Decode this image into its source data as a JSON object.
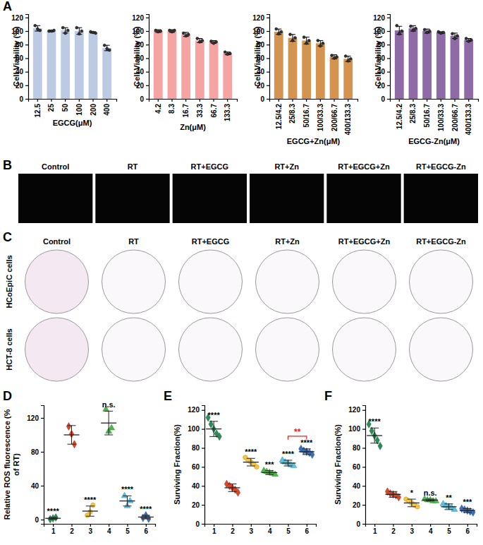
{
  "panel_letters": [
    "A",
    "B",
    "C",
    "D",
    "E",
    "F"
  ],
  "image_panels": {
    "fluorescence": {
      "columns": [
        "Control",
        "RT",
        "RT+EGCG",
        "RT+Zn",
        "RT+EGCG+Zn",
        "RT+EGCG-Zn"
      ]
    },
    "colony": {
      "columns": [
        "Control",
        "RT",
        "RT+EGCG",
        "RT+Zn",
        "RT+EGCG+Zn",
        "RT+EGCG-Zn"
      ],
      "rows": [
        "HCoEpiC cells",
        "HCT-8 cells"
      ]
    }
  },
  "chart_data": [
    {
      "type": "bar",
      "x_label": "EGCG(μM)",
      "y_label": "Cell Viability (%)",
      "categories": [
        "12.5",
        "25",
        "50",
        "100",
        "200",
        "400"
      ],
      "values": [
        104,
        100,
        101,
        100,
        98,
        75
      ],
      "errors": [
        4,
        1,
        4,
        5,
        1,
        4
      ],
      "points": [
        [
          108,
          103,
          101
        ],
        [
          100,
          100,
          101
        ],
        [
          105,
          97,
          101
        ],
        [
          105,
          96,
          100
        ],
        [
          99,
          98,
          97
        ],
        [
          79,
          74,
          72
        ]
      ],
      "color": "#bccbe3",
      "ylim": [
        0,
        125
      ],
      "yticks": [
        0,
        20,
        40,
        60,
        80,
        100,
        120
      ]
    },
    {
      "type": "bar",
      "x_label": "Zn(μM)",
      "y_label": "Cell Viability (%)",
      "categories": [
        "4.2",
        "8.3",
        "16.7",
        "33.3",
        "66.7",
        "133.3"
      ],
      "values": [
        100,
        100,
        95,
        86,
        84,
        67
      ],
      "errors": [
        2,
        2,
        3,
        3,
        2,
        2
      ],
      "points": [
        [
          101,
          99,
          100
        ],
        [
          101,
          99,
          101
        ],
        [
          97,
          93,
          95
        ],
        [
          89,
          84,
          86
        ],
        [
          85,
          82,
          84
        ],
        [
          69,
          66,
          67
        ]
      ],
      "color": "#f5a3a3",
      "ylim": [
        0,
        125
      ],
      "yticks": [
        0,
        20,
        40,
        60,
        80,
        100,
        120
      ]
    },
    {
      "type": "bar",
      "x_label": "EGCG+Zn(μM)",
      "y_label": "Cell Viability (%)",
      "categories": [
        "12.5/4.2",
        "25/8.3",
        "50/16.7",
        "100/33.3",
        "200/66.7",
        "400/133.3"
      ],
      "values": [
        99,
        90,
        86,
        82,
        62,
        59
      ],
      "errors": [
        4,
        5,
        5,
        4,
        3,
        4
      ],
      "points": [
        [
          103,
          96,
          99
        ],
        [
          95,
          86,
          90
        ],
        [
          91,
          82,
          86
        ],
        [
          86,
          78,
          82
        ],
        [
          64,
          60,
          62
        ],
        [
          63,
          56,
          59
        ]
      ],
      "color": "#d4944f",
      "ylim": [
        0,
        125
      ],
      "yticks": [
        0,
        20,
        40,
        60,
        80,
        100,
        120
      ]
    },
    {
      "type": "bar",
      "x_label": "EGCG-Zn(μM)",
      "y_label": "Cell Viability (%)",
      "categories": [
        "12.5/4.2",
        "25/8.3",
        "50/16.7",
        "100/33.3",
        "200/66.7",
        "400/133.3"
      ],
      "values": [
        101,
        104,
        100,
        98,
        93,
        87
      ],
      "errors": [
        6,
        4,
        3,
        1,
        4,
        2
      ],
      "points": [
        [
          108,
          96,
          100
        ],
        [
          107,
          101,
          104
        ],
        [
          102,
          98,
          100
        ],
        [
          99,
          97,
          98
        ],
        [
          96,
          89,
          93
        ],
        [
          89,
          85,
          87
        ]
      ],
      "color": "#8e6aa6",
      "ylim": [
        0,
        125
      ],
      "yticks": [
        0,
        20,
        40,
        60,
        80,
        100,
        120
      ]
    },
    {
      "type": "scatter",
      "y_label": "Relative ROS fluorescence (% of RT)",
      "categories": [
        "1",
        "2",
        "3",
        "4",
        "5",
        "6"
      ],
      "values": [
        1.5,
        100,
        10,
        114,
        22,
        3
      ],
      "errors": [
        1,
        11,
        6,
        14,
        6,
        2
      ],
      "annotations": [
        "****",
        null,
        "****",
        "n.s.",
        "****",
        "****"
      ],
      "series": [
        {
          "color": "#2e8b57",
          "marker": "diamond",
          "points": [
            0.5,
            1.5,
            2.5
          ]
        },
        {
          "color": "#d9472b",
          "marker": "diamond",
          "points": [
            110,
            101,
            89
          ]
        },
        {
          "color": "#f4c542",
          "marker": "circle",
          "points": [
            5,
            9,
            17
          ]
        },
        {
          "color": "#4cb84a",
          "marker": "triangle",
          "points": [
            130,
            104,
            108
          ]
        },
        {
          "color": "#5cc1dd",
          "marker": "triangle",
          "points": [
            28,
            16,
            22
          ]
        },
        {
          "color": "#3d6fb6",
          "marker": "diamond",
          "points": [
            2,
            5,
            1
          ]
        }
      ],
      "ylim": [
        -5,
        135
      ],
      "yticks": [
        0,
        40,
        80,
        120
      ]
    },
    {
      "type": "scatter",
      "y_label": "Surviving Fraction(%)",
      "categories": [
        "1",
        "2",
        "3",
        "4",
        "5",
        "6"
      ],
      "values": [
        100,
        38,
        65,
        54,
        64,
        76
      ],
      "errors": [
        8,
        4,
        4,
        2,
        3,
        3
      ],
      "annotations": [
        "****",
        null,
        "****",
        "***",
        "****",
        "****"
      ],
      "bracket": {
        "between": [
          "5",
          "6"
        ],
        "label": "**",
        "color": "#e8211c"
      },
      "series": [
        {
          "color": "#2e8b57",
          "marker": "diamond",
          "points": [
            112,
            105,
            100,
            95,
            92
          ]
        },
        {
          "color": "#d9472b",
          "marker": "diamond",
          "points": [
            42,
            40,
            38,
            36,
            33
          ]
        },
        {
          "color": "#f4c542",
          "marker": "circle",
          "points": [
            70,
            67,
            65,
            63,
            60
          ]
        },
        {
          "color": "#4cb84a",
          "marker": "triangle",
          "points": [
            56,
            55,
            54,
            53,
            52
          ]
        },
        {
          "color": "#5cc1dd",
          "marker": "triangle",
          "points": [
            67,
            65,
            64,
            62,
            61
          ]
        },
        {
          "color": "#3d6fb6",
          "marker": "diamond",
          "points": [
            79,
            77,
            76,
            75,
            73
          ]
        }
      ],
      "ylim": [
        0,
        125
      ],
      "yticks": [
        0,
        20,
        40,
        60,
        80,
        100,
        120
      ]
    },
    {
      "type": "scatter",
      "y_label": "Surviving Fraction(%)",
      "categories": [
        "1",
        "2",
        "3",
        "4",
        "5",
        "6"
      ],
      "values": [
        93,
        31,
        22,
        25,
        18,
        14
      ],
      "errors": [
        8,
        3,
        4,
        1,
        3,
        2
      ],
      "annotations": [
        "****",
        null,
        "*",
        "n.s.",
        "**",
        "***"
      ],
      "series": [
        {
          "color": "#2e8b57",
          "marker": "diamond",
          "points": [
            105,
            98,
            93,
            88,
            82
          ]
        },
        {
          "color": "#d9472b",
          "marker": "diamond",
          "points": [
            34,
            32,
            31,
            30,
            28
          ]
        },
        {
          "color": "#f4c542",
          "marker": "circle",
          "points": [
            26,
            24,
            22,
            20,
            18
          ]
        },
        {
          "color": "#4cb84a",
          "marker": "triangle",
          "points": [
            26,
            25,
            25,
            24,
            24
          ]
        },
        {
          "color": "#5cc1dd",
          "marker": "triangle",
          "points": [
            21,
            19,
            18,
            17,
            15
          ]
        },
        {
          "color": "#3d6fb6",
          "marker": "diamond",
          "points": [
            16,
            15,
            14,
            13,
            12
          ]
        }
      ],
      "ylim": [
        0,
        125
      ],
      "yticks": [
        0,
        20,
        40,
        60,
        80,
        100,
        120
      ]
    }
  ]
}
